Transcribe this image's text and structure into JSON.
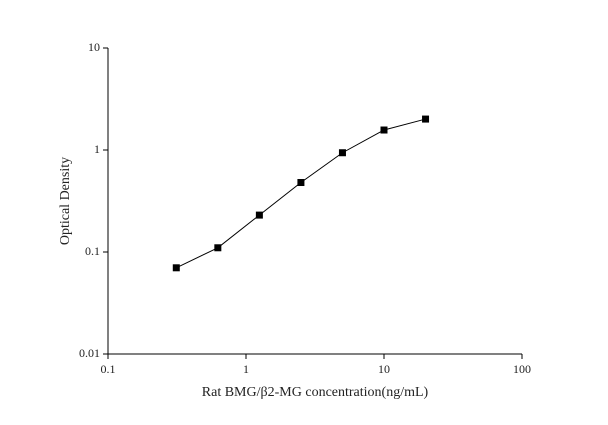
{
  "chart_data": {
    "type": "line",
    "xlabel": "Rat BMG/β2-MG concentration(ng/mL)",
    "ylabel": "Optical Density",
    "x": [
      0.3125,
      0.625,
      1.25,
      2.5,
      5,
      10,
      20
    ],
    "series": [
      {
        "color": "#000000",
        "values": [
          0.07,
          0.11,
          0.23,
          0.48,
          0.94,
          1.57,
          2.01
        ]
      }
    ],
    "xlim": [
      0.1,
      100
    ],
    "ylim": [
      0.01,
      10
    ],
    "xticks": [
      0.1,
      1,
      10,
      100
    ],
    "yticks": [
      0.01,
      0.1,
      1,
      10
    ],
    "xscale": "log",
    "yscale": "log"
  }
}
